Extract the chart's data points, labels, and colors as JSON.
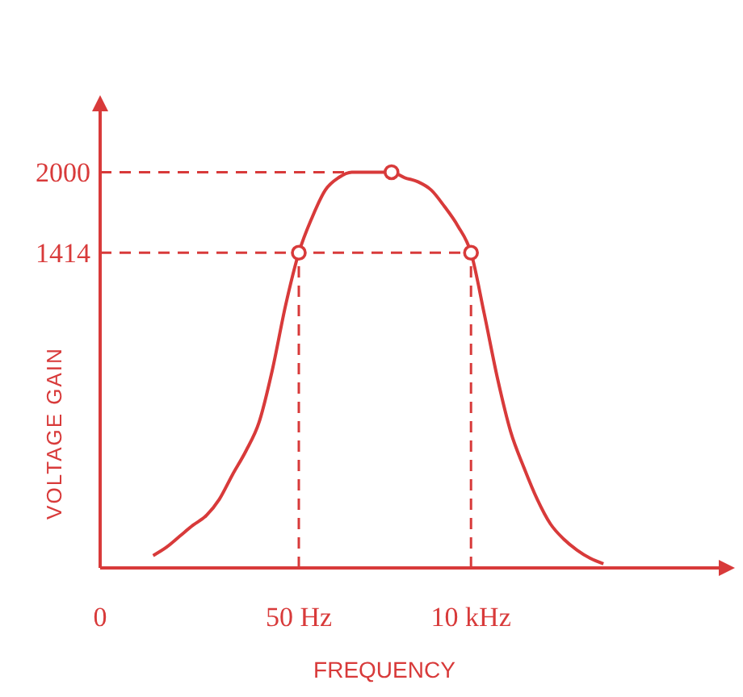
{
  "chart_data": {
    "type": "line",
    "xlabel": "FREQUENCY",
    "ylabel": "VOLTAGE GAIN",
    "ylim": [
      -880,
      2490
    ],
    "categories": [
      "0",
      null,
      null,
      null,
      null,
      null,
      null,
      null,
      null,
      null,
      null,
      null,
      null,
      null,
      null,
      "50 Hz",
      null,
      null,
      null,
      null,
      null,
      null,
      null,
      null,
      null,
      null,
      null,
      null,
      "10 kHz",
      null,
      null,
      null,
      null,
      null,
      null,
      null,
      null,
      null,
      null,
      null,
      null,
      null,
      null,
      null,
      null,
      null,
      null,
      null
    ],
    "yticks": [
      1414,
      2000
    ],
    "grid": false,
    "line_style": "solid",
    "ref_lines": [
      {
        "axis": "y",
        "value": 2000,
        "line_style": "dashed"
      },
      {
        "axis": "y",
        "value": 1414,
        "line_style": "dashed"
      },
      {
        "axis": "x",
        "value": "50 Hz",
        "line_style": "dashed"
      },
      {
        "axis": "x",
        "value": "10 kHz",
        "line_style": "dashed"
      }
    ],
    "series": [
      {
        "color": "#d83a3a",
        "values": [
          null,
          null,
          null,
          null,
          -790,
          -730,
          -650,
          -570,
          -500,
          -380,
          -200,
          -30,
          180,
          560,
          1030,
          1414,
          1670,
          1870,
          1960,
          2000,
          2000,
          2000,
          2000,
          1960,
          1930,
          1870,
          1750,
          1610,
          1414,
          970,
          500,
          110,
          -150,
          -380,
          -560,
          -670,
          -750,
          -810,
          -850,
          null,
          null,
          null,
          null,
          null,
          null,
          null,
          null,
          null
        ]
      },
      {
        "type": "scatter",
        "color": "#d83a3a",
        "marker": "circle",
        "values": [
          null,
          null,
          null,
          null,
          null,
          null,
          null,
          null,
          null,
          null,
          null,
          null,
          null,
          null,
          null,
          1414,
          null,
          null,
          null,
          null,
          null,
          null,
          2000,
          null,
          null,
          null,
          null,
          null,
          1414,
          null,
          null,
          null,
          null,
          null,
          null,
          null,
          null,
          null,
          null,
          null,
          null,
          null,
          null,
          null,
          null,
          null,
          null,
          null
        ]
      }
    ]
  }
}
